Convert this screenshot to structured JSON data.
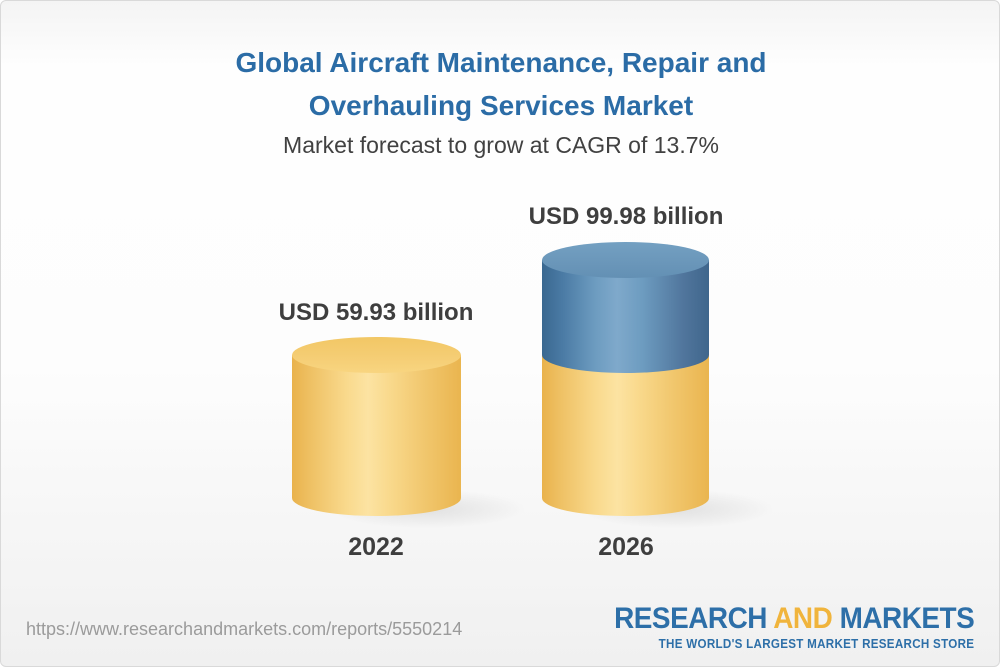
{
  "header": {
    "title_line1": "Global Aircraft Maintenance, Repair and",
    "title_line2": "Overhauling Services Market",
    "subtitle": "Market forecast to grow at CAGR of 13.7%"
  },
  "chart_data": {
    "type": "bar",
    "variant": "3d-cylinder-stacked",
    "categories": [
      "2022",
      "2026"
    ],
    "values": [
      59.93,
      99.98
    ],
    "value_labels": [
      "USD 59.93 billion",
      "USD 99.98 billion"
    ],
    "unit": "USD billion",
    "cagr_percent": 13.7,
    "series": [
      {
        "name": "base-2022-value",
        "values": [
          59.93,
          59.93
        ],
        "color": "#f5cc72"
      },
      {
        "name": "growth-over-2022",
        "values": [
          0,
          40.05
        ],
        "color": "#6b97ba"
      }
    ],
    "legend": "none",
    "grid": "off",
    "axes": "none",
    "colors": {
      "yellow_segment": "#f5cc72",
      "blue_segment": "#6b97ba",
      "label_text": "#3e3e3e"
    }
  },
  "footer": {
    "url": "https://www.researchandmarkets.com/reports/5550214",
    "logo": {
      "part1": "RESEARCH",
      "part2": "AND",
      "part3": "MARKETS",
      "tagline": "THE WORLD'S LARGEST MARKET RESEARCH STORE"
    },
    "colors": {
      "logo_blue": "#2d6fa8",
      "logo_gold": "#f0b43c",
      "url_gray": "#9b9b9b"
    }
  },
  "page": {
    "title_color": "#2b6ca6",
    "background_top": "#ffffff",
    "background_bottom": "#f0f0f0"
  }
}
